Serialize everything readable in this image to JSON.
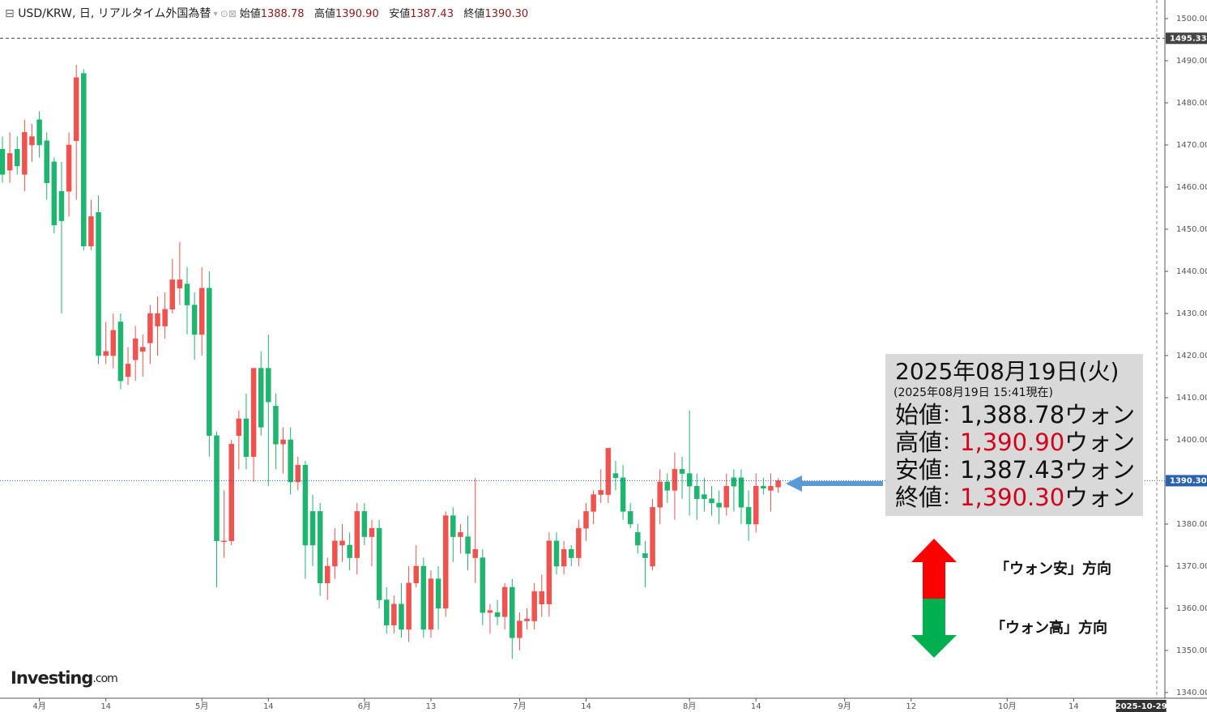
{
  "chart_data": {
    "type": "candlestick",
    "header": {
      "title": "USD/KRW, 日, リアルタイム外国為替",
      "fields": [
        {
          "label": "始値",
          "value": "1388.78"
        },
        {
          "label": "高値",
          "value": "1390.90"
        },
        {
          "label": "安値",
          "value": "1387.43"
        },
        {
          "label": "終値",
          "value": "1390.30"
        }
      ]
    },
    "categories": [
      null,
      null,
      null,
      null,
      null,
      "4月",
      null,
      null,
      null,
      null,
      null,
      null,
      null,
      null,
      "14",
      null,
      null,
      null,
      null,
      null,
      null,
      null,
      null,
      null,
      null,
      null,
      null,
      "5月",
      null,
      null,
      null,
      null,
      null,
      null,
      null,
      null,
      "14",
      null,
      null,
      null,
      null,
      null,
      null,
      null,
      null,
      null,
      null,
      null,
      null,
      "6月",
      null,
      null,
      null,
      null,
      null,
      null,
      null,
      null,
      "13",
      null,
      null,
      null,
      null,
      null,
      null,
      null,
      null,
      null,
      null,
      null,
      "7月",
      null,
      null,
      null,
      null,
      null,
      null,
      null,
      null,
      "14",
      null,
      null,
      null,
      null,
      null,
      null,
      null,
      null,
      null,
      null,
      null,
      null,
      null,
      "8月",
      null,
      null,
      null,
      null,
      null,
      null,
      null,
      null,
      "14",
      null,
      null,
      null,
      null,
      null,
      null,
      null,
      null,
      null,
      null,
      null,
      "9月",
      null,
      null,
      null,
      null,
      null,
      null,
      null,
      null,
      "12",
      null,
      null,
      null,
      null,
      null,
      null,
      null,
      null,
      null,
      null,
      null,
      null,
      "10月",
      null,
      null,
      null,
      null,
      null,
      null,
      null,
      null,
      "14",
      null,
      null,
      null,
      null,
      null,
      null,
      null,
      null,
      null,
      null,
      "2025-10-29"
    ],
    "open": [
      1469,
      1464,
      1469,
      1463,
      1470,
      1476,
      1471,
      1466,
      1459,
      1459,
      1471,
      1487,
      1446,
      1454,
      1420,
      1420,
      1428,
      1415,
      1419,
      1421,
      1423,
      1427,
      1427,
      1431,
      1436,
      1437,
      1432,
      1425,
      1436,
      1401,
      1376,
      1376,
      1401,
      1405,
      1396,
      1417,
      1417,
      1408,
      1399,
      1400,
      1390,
      1394,
      1383,
      1383,
      1366,
      1370,
      1375,
      1375,
      1372,
      1383,
      1377,
      1379,
      1362,
      1356,
      1361,
      1355,
      1366,
      1370,
      1355,
      1367,
      1360,
      1382,
      1377,
      1377,
      1372,
      1372,
      1359,
      1359,
      1358,
      1365,
      1353,
      1357,
      1357,
      1361,
      1361,
      1376,
      1370,
      1374,
      1372,
      1379,
      1383,
      1387,
      1387,
      1392,
      1391,
      1383,
      1378,
      1373,
      1370,
      1384,
      1390,
      1388,
      1393,
      1392,
      1389,
      1387,
      1386,
      1385,
      1384,
      1391,
      1391,
      1384,
      1380,
      1389,
      1388,
      1388.78,
      null,
      null,
      null,
      null,
      null,
      null,
      null,
      null,
      null,
      null,
      null,
      null,
      null,
      null,
      null,
      null,
      null,
      null,
      null,
      null,
      null,
      null,
      null,
      null,
      null,
      null,
      null,
      null,
      null,
      null,
      null,
      null,
      null,
      null,
      null,
      null,
      null,
      null,
      null,
      null,
      null,
      null,
      null,
      null,
      null,
      null,
      null,
      null,
      null,
      null,
      null
    ],
    "high": [
      1472,
      1473,
      1472,
      1476,
      1475,
      1478,
      1473,
      1467,
      1466,
      1473,
      1489,
      1488,
      1457,
      1458,
      1428,
      1430,
      1430,
      1422,
      1427,
      1425,
      1432,
      1434,
      1435,
      1443,
      1447,
      1441,
      1435,
      1441,
      1440,
      1402,
      1388,
      1400,
      1407,
      1411,
      1417,
      1421,
      1425,
      1411,
      1403,
      1403,
      1396,
      1395,
      1387,
      1385,
      1372,
      1379,
      1380,
      1378,
      1385,
      1385,
      1381,
      1381,
      1365,
      1363,
      1366,
      1370,
      1375,
      1372,
      1369,
      1370,
      1383,
      1384,
      1380,
      1382,
      1391,
      1374,
      1361,
      1362,
      1366,
      1367,
      1359,
      1360,
      1366,
      1368,
      1378,
      1378,
      1376,
      1375,
      1381,
      1385,
      1388,
      1393,
      1398,
      1395,
      1394,
      1385,
      1380,
      1376,
      1386,
      1393,
      1392,
      1397,
      1396,
      1407,
      1392,
      1391,
      1389,
      1388,
      1392,
      1393,
      1393,
      1388,
      1392,
      1391,
      1392,
      1390.9,
      null,
      null,
      null,
      null,
      null,
      null,
      null,
      null,
      null,
      null,
      null,
      null,
      null,
      null,
      null,
      null,
      null,
      null,
      null,
      null,
      null,
      null,
      null,
      null,
      null,
      null,
      null,
      null,
      null,
      null,
      null,
      null,
      null,
      null,
      null,
      null,
      null,
      null,
      null,
      null,
      null,
      null,
      null,
      null,
      null,
      null,
      null,
      null,
      null,
      null,
      null
    ],
    "low": [
      1461,
      1461,
      1463,
      1459,
      1466,
      1467,
      1457,
      1449,
      1430,
      1453,
      1457,
      1445,
      1445,
      1418,
      1418,
      1417,
      1412,
      1413,
      1414,
      1415,
      1418,
      1420,
      1424,
      1430,
      1432,
      1425,
      1419,
      1420,
      1396,
      1365,
      1372,
      1375,
      1393,
      1393,
      1390,
      1401,
      1389,
      1393,
      1392,
      1387,
      1388,
      1367,
      1370,
      1363,
      1362,
      1367,
      1371,
      1369,
      1368,
      1375,
      1370,
      1360,
      1354,
      1354,
      1353,
      1352,
      1365,
      1353,
      1353,
      1355,
      1358,
      1371,
      1373,
      1369,
      1366,
      1356,
      1354,
      1356,
      1355,
      1348,
      1350,
      1355,
      1355,
      1358,
      1358,
      1368,
      1368,
      1370,
      1370,
      1376,
      1380,
      1385,
      1385,
      1388,
      1381,
      1379,
      1373,
      1365,
      1369,
      1380,
      1385,
      1381,
      1386,
      1382,
      1381,
      1383,
      1382,
      1380,
      1382,
      1383,
      1380,
      1376,
      1378,
      1387,
      1383,
      1387.43,
      null,
      null,
      null,
      null,
      null,
      null,
      null,
      null,
      null,
      null,
      null,
      null,
      null,
      null,
      null,
      null,
      null,
      null,
      null,
      null,
      null,
      null,
      null,
      null,
      null,
      null,
      null,
      null,
      null,
      null,
      null,
      null,
      null,
      null,
      null,
      null,
      null,
      null,
      null,
      null,
      null,
      null,
      null,
      null,
      null,
      null,
      null,
      null,
      null,
      null,
      null
    ],
    "close": [
      1463,
      1468,
      1465,
      1473,
      1472,
      1470,
      1461,
      1451,
      1452,
      1470,
      1486,
      1446,
      1453,
      1420,
      1421,
      1426,
      1414,
      1418,
      1424,
      1422,
      1430,
      1430,
      1431,
      1438,
      1438,
      1432,
      1425,
      1436,
      1401,
      1376,
      1376,
      1399,
      1405,
      1396,
      1417,
      1403,
      1409,
      1399,
      1400,
      1390,
      1394,
      1375,
      1375,
      1366,
      1370,
      1376,
      1376,
      1372,
      1383,
      1377,
      1379,
      1362,
      1356,
      1361,
      1355,
      1366,
      1370,
      1355,
      1367,
      1360,
      1382,
      1377,
      1378,
      1373,
      1374,
      1359,
      1359.5,
      1358,
      1365,
      1353,
      1357,
      1357.5,
      1364,
      1364,
      1376,
      1370,
      1374,
      1372,
      1379,
      1383,
      1387,
      1388,
      1398,
      1391,
      1383,
      1380,
      1375,
      1372,
      1384,
      1390,
      1388,
      1393,
      1392,
      1389,
      1386,
      1386,
      1385,
      1384,
      1389,
      1389,
      1384,
      1380,
      1389,
      1388.5,
      1389,
      1390.3,
      null,
      null,
      null,
      null,
      null,
      null,
      null,
      null,
      null,
      null,
      null,
      null,
      null,
      null,
      null,
      null,
      null,
      null,
      null,
      null,
      null,
      null,
      null,
      null,
      null,
      null,
      null,
      null,
      null,
      null,
      null,
      null,
      null,
      null,
      null,
      null,
      null,
      null,
      null,
      null,
      null,
      null,
      null,
      null,
      null,
      null,
      null,
      null,
      null,
      null,
      null
    ],
    "up_color": "#ef5350",
    "down_color": "#1fb46f",
    "ylim": [
      1338.65,
      1504.42
    ],
    "yticks": [
      {
        "value": 1340,
        "label": "1340.00"
      },
      {
        "value": 1350,
        "label": "1350.00"
      },
      {
        "value": 1360,
        "label": "1360.00"
      },
      {
        "value": 1370,
        "label": "1370.00"
      },
      {
        "value": 1380,
        "label": "1380.00"
      },
      {
        "value": 1390,
        "label": "1390.00"
      },
      {
        "value": 1400,
        "label": "1400.00"
      },
      {
        "value": 1410,
        "label": "1410.00"
      },
      {
        "value": 1420,
        "label": "1420.00"
      },
      {
        "value": 1430,
        "label": "1430.00"
      },
      {
        "value": 1440,
        "label": "1440.00"
      },
      {
        "value": 1450,
        "label": "1450.00"
      },
      {
        "value": 1460,
        "label": "1460.00"
      },
      {
        "value": 1470,
        "label": "1470.00"
      },
      {
        "value": 1480,
        "label": "1480.00"
      },
      {
        "value": 1490,
        "label": "1490.00"
      },
      {
        "value": 1500,
        "label": "1500.00"
      }
    ],
    "crosshair_price": {
      "value": 1495.33,
      "label": "1495.33",
      "color": "#444444"
    },
    "last_price": {
      "value": 1390.3,
      "label": "1390.30",
      "color": "#2a62b0"
    },
    "info_box": {
      "title": "2025年08月19日(火)",
      "subtitle": "(2025年08月19日 15:41現在)",
      "separator": "：",
      "unit": "ウォン",
      "rows": [
        {
          "label": "始値",
          "value": "1,388.78",
          "color": "#111111"
        },
        {
          "label": "高値",
          "value": "1,390.90",
          "color": "#d0021b"
        },
        {
          "label": "安値",
          "value": "1,387.43",
          "color": "#111111"
        },
        {
          "label": "終値",
          "value": "1,390.30",
          "color": "#d0021b"
        }
      ]
    },
    "annotations": {
      "up_label": "「ウォン安」方向",
      "down_label": "「ウォン高」方向"
    },
    "logo": {
      "main": "Investing",
      "suffix": ".com"
    }
  }
}
